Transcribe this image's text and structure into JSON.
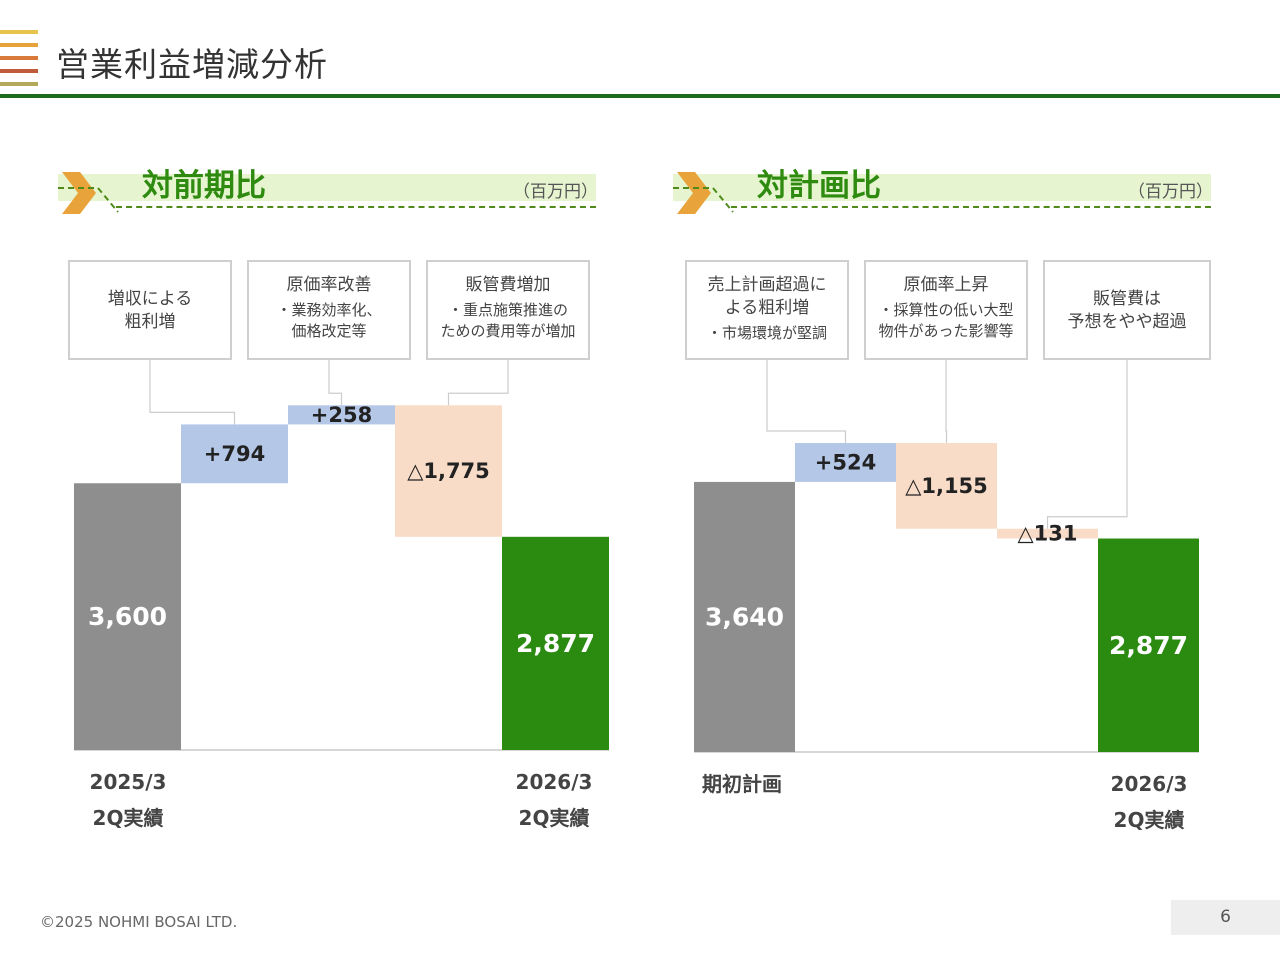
{
  "header": {
    "title": "営業利益増減分析",
    "logo_colors": [
      "#e6c34a",
      "#e6a33b",
      "#d97a3a",
      "#c05a3a",
      "#b4a85a"
    ],
    "rule_color": "#1e6b1e"
  },
  "colors": {
    "start_bar": "#8e8e8e",
    "end_bar": "#2b8a10",
    "increase": "#b4c7e7",
    "decrease": "#f8dcc8",
    "header_band": "#e6f5d0",
    "chevron": "#e8a33a"
  },
  "panels": [
    {
      "title": "対前期比",
      "unit": "（百万円）",
      "callouts": [
        {
          "main": "増収による\n粗利増",
          "sub": ""
        },
        {
          "main": "原価率改善",
          "sub": "・業務効率化、\n価格改定等"
        },
        {
          "main": "販管費増加",
          "sub": "・重点施策推進の\nための費用等が増加"
        }
      ],
      "axis_labels": {
        "start": "2025/3\n2Q実績",
        "end": "2026/3\n2Q実績"
      }
    },
    {
      "title": "対計画比",
      "unit": "（百万円）",
      "callouts": [
        {
          "main": "売上計画超過に\nよる粗利増",
          "sub": "・市場環境が堅調"
        },
        {
          "main": "原価率上昇",
          "sub": "・採算性の低い大型\n物件があった影響等"
        },
        {
          "main": "販管費は\n予想をやや超過",
          "sub": ""
        }
      ],
      "axis_labels": {
        "start": "期初計画",
        "end": "2026/3\n2Q実績"
      }
    }
  ],
  "chart_data": [
    {
      "type": "bar",
      "subtype": "waterfall",
      "title": "対前期比",
      "unit": "百万円",
      "categories": [
        "2025/3 2Q実績",
        "増収による粗利増",
        "原価率改善",
        "販管費増加",
        "2026/3 2Q実績"
      ],
      "values": [
        3600,
        794,
        258,
        -1775,
        2877
      ],
      "labels": [
        "3,600",
        "+794",
        "+258",
        "△1,775",
        "2,877"
      ],
      "kinds": [
        "total",
        "increase",
        "increase",
        "decrease",
        "total"
      ]
    },
    {
      "type": "bar",
      "subtype": "waterfall",
      "title": "対計画比",
      "unit": "百万円",
      "categories": [
        "期初計画",
        "売上計画超過による粗利増",
        "原価率上昇",
        "販管費は予想をやや超過",
        "2026/3 2Q実績"
      ],
      "values": [
        3640,
        524,
        -1155,
        -131,
        2877
      ],
      "labels": [
        "3,640",
        "+524",
        "△1,155",
        "△131",
        "2,877"
      ],
      "kinds": [
        "total",
        "increase",
        "decrease",
        "decrease",
        "total"
      ]
    }
  ],
  "footer": {
    "copyright": "©2025 NOHMI BOSAI LTD.",
    "page_number": "6"
  }
}
